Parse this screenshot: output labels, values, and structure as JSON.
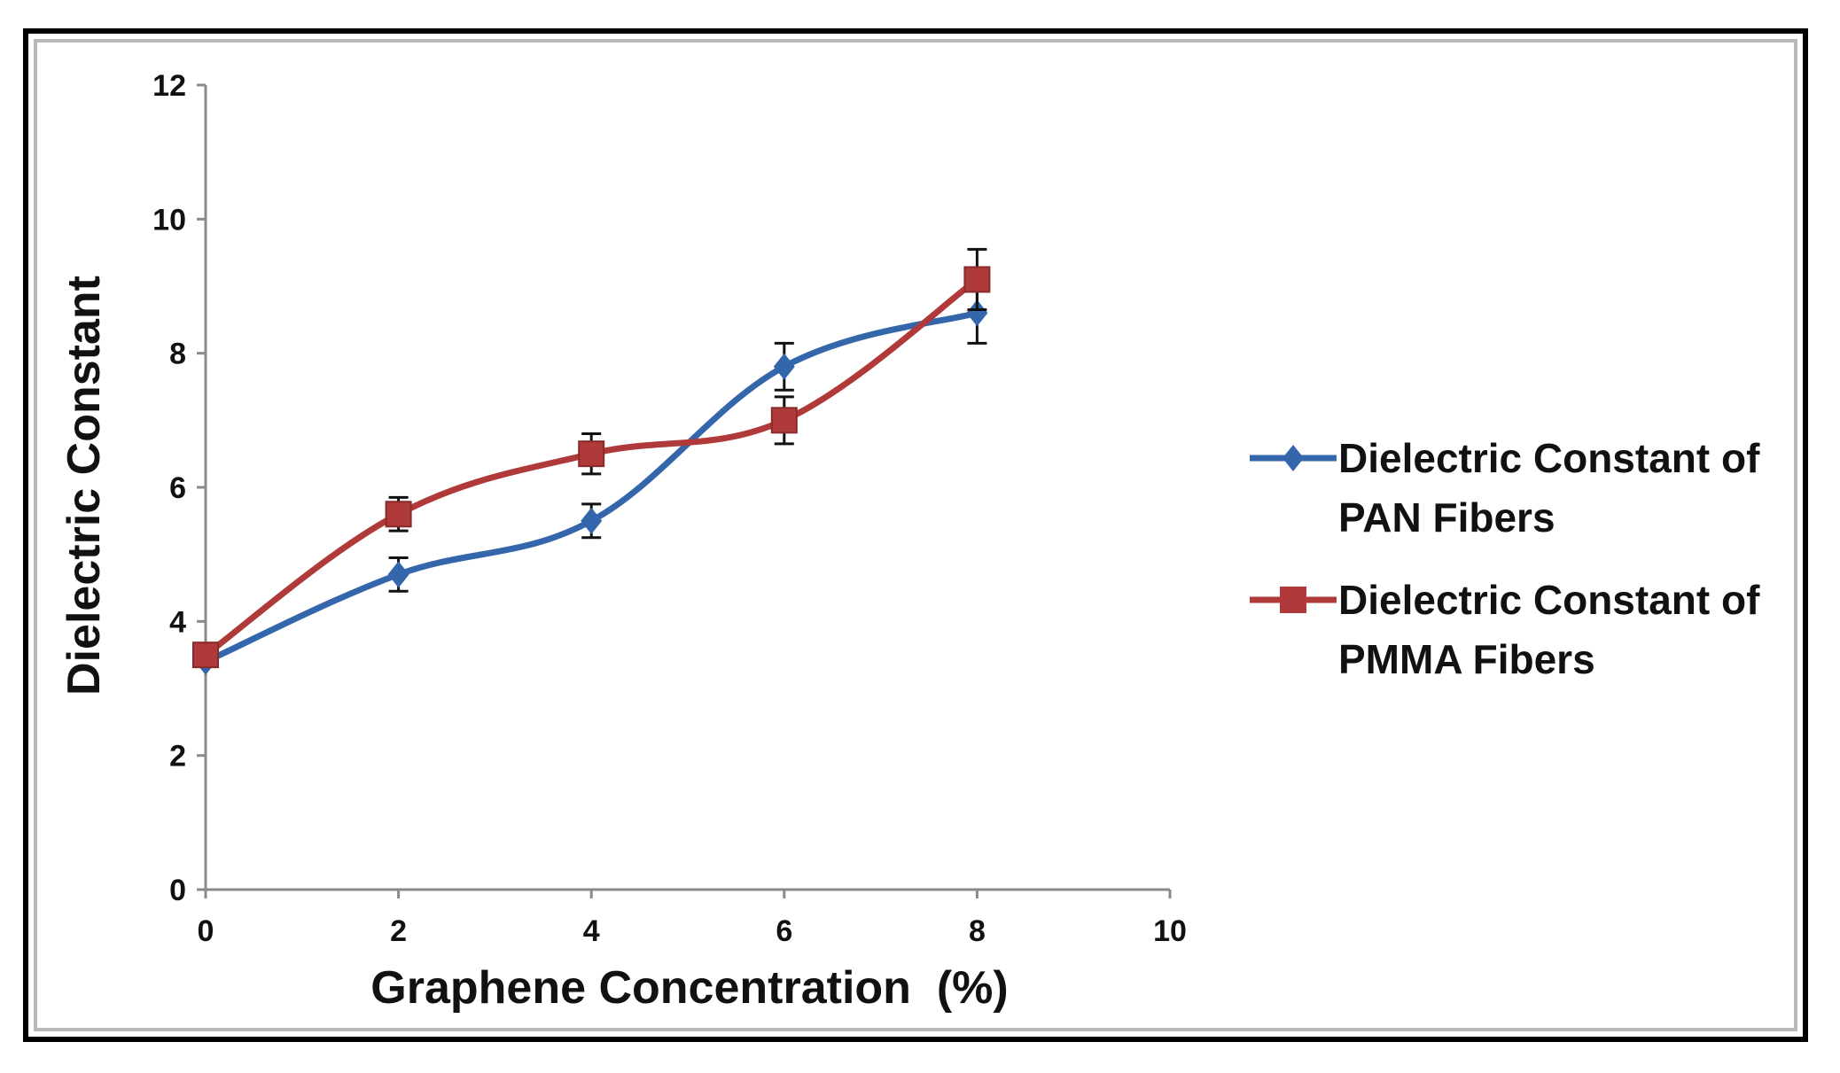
{
  "chart_data": {
    "type": "line",
    "title": "",
    "xlabel": "Graphene Concentration  (%)",
    "ylabel": "Dielectric Constant",
    "xlim": [
      0,
      10
    ],
    "ylim": [
      0,
      12
    ],
    "xticks": [
      0,
      2,
      4,
      6,
      8,
      10
    ],
    "yticks": [
      0,
      2,
      4,
      6,
      8,
      10,
      12
    ],
    "grid": false,
    "legend_position": "right",
    "series": [
      {
        "name": "Dielectric Constant of PAN Fibers",
        "legend_lines": [
          "Dielectric Constant of",
          "PAN Fibers"
        ],
        "marker": "diamond",
        "color": "#3366aa",
        "x": [
          0,
          2,
          4,
          6,
          8
        ],
        "y": [
          3.4,
          4.7,
          5.5,
          7.8,
          8.6
        ],
        "error": [
          0.0,
          0.25,
          0.25,
          0.35,
          0.45
        ]
      },
      {
        "name": "Dielectric Constant of PMMA Fibers",
        "legend_lines": [
          "Dielectric Constant of",
          "PMMA Fibers"
        ],
        "marker": "square",
        "color": "#b03a3a",
        "x": [
          0,
          2,
          4,
          6,
          8
        ],
        "y": [
          3.5,
          5.6,
          6.5,
          7.0,
          9.1
        ],
        "error": [
          0.0,
          0.25,
          0.3,
          0.35,
          0.45
        ]
      }
    ]
  }
}
